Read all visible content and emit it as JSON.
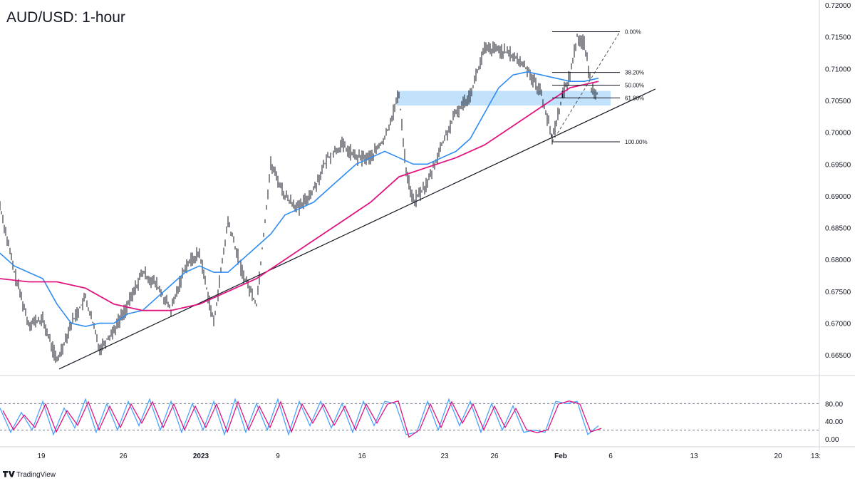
{
  "title": "AUD/USD: 1-hour",
  "brand": {
    "name": "TradingView",
    "logo_icon": "tradingview-logo-icon"
  },
  "colors": {
    "candle": "#131722",
    "ma_fast": "#2f8cf0",
    "ma_slow": "#e0157f",
    "zone": "#bbdefb",
    "stoch_k": "#4aa3ff",
    "stoch_d": "#e0157f"
  },
  "chart_data": {
    "type": "line",
    "instrument": "AUD/USD",
    "timeframe": "1-hour",
    "x_tick_labels": [
      "19",
      "26",
      "2023",
      "9",
      "16",
      "23",
      "26",
      "Feb",
      "6",
      "13",
      "20",
      "13:"
    ],
    "price_axis": {
      "ylim": [
        0.662,
        0.72
      ],
      "tick_labels": [
        "0.72000",
        "0.71500",
        "0.71000",
        "0.70500",
        "0.70000",
        "0.69500",
        "0.69000",
        "0.68500",
        "0.68000",
        "0.67500",
        "0.67000",
        "0.66500"
      ]
    },
    "series": [
      {
        "kind": "price",
        "x": [
          0,
          20,
          40,
          60,
          80,
          100,
          120,
          140,
          160,
          180,
          200,
          220,
          240,
          260,
          280,
          300,
          320,
          340,
          360,
          380,
          400,
          420,
          440,
          460,
          480,
          500,
          520,
          540,
          560,
          570,
          580,
          600,
          620,
          640,
          660,
          680,
          700,
          720,
          740,
          760,
          775,
          790,
          800,
          810,
          820,
          830,
          840
        ],
        "values": [
          0.6885,
          0.678,
          0.67,
          0.6705,
          0.664,
          0.67,
          0.674,
          0.666,
          0.669,
          0.673,
          0.678,
          0.676,
          0.672,
          0.679,
          0.681,
          0.67,
          0.686,
          0.678,
          0.673,
          0.695,
          0.69,
          0.688,
          0.691,
          0.696,
          0.698,
          0.696,
          0.696,
          0.699,
          0.706,
          0.694,
          0.689,
          0.692,
          0.698,
          0.703,
          0.706,
          0.713,
          0.713,
          0.712,
          0.71,
          0.706,
          0.699,
          0.706,
          0.709,
          0.715,
          0.714,
          0.707,
          0.706
        ]
      },
      {
        "kind": "ma_fast",
        "x": [
          0,
          20,
          40,
          60,
          80,
          100,
          120,
          140,
          160,
          180,
          200,
          220,
          240,
          260,
          280,
          300,
          320,
          340,
          360,
          380,
          400,
          420,
          440,
          460,
          480,
          500,
          520,
          540,
          560,
          580,
          600,
          620,
          640,
          660,
          680,
          700,
          720,
          740,
          760,
          780,
          800,
          820,
          840
        ],
        "values": [
          0.681,
          0.679,
          0.678,
          0.677,
          0.673,
          0.67,
          0.6695,
          0.67,
          0.67,
          0.6715,
          0.672,
          0.674,
          0.676,
          0.678,
          0.679,
          0.678,
          0.678,
          0.68,
          0.682,
          0.684,
          0.687,
          0.688,
          0.689,
          0.691,
          0.693,
          0.695,
          0.696,
          0.697,
          0.696,
          0.695,
          0.695,
          0.696,
          0.697,
          0.699,
          0.703,
          0.707,
          0.709,
          0.7095,
          0.709,
          0.7085,
          0.708,
          0.708,
          0.7085
        ]
      },
      {
        "kind": "ma_slow",
        "x": [
          0,
          40,
          80,
          120,
          160,
          200,
          240,
          280,
          320,
          360,
          400,
          440,
          480,
          520,
          560,
          600,
          640,
          680,
          720,
          760,
          800,
          840
        ],
        "values": [
          0.677,
          0.6765,
          0.6765,
          0.6755,
          0.673,
          0.672,
          0.672,
          0.673,
          0.675,
          0.677,
          0.68,
          0.683,
          0.686,
          0.689,
          0.693,
          0.6945,
          0.696,
          0.698,
          0.701,
          0.704,
          0.707,
          0.708
        ]
      }
    ],
    "trendline": {
      "from": {
        "x": 83,
        "y": 0.6628
      },
      "to": {
        "x": 920,
        "y": 0.7068
      }
    },
    "zone": {
      "from_x": 557,
      "to_x": 857,
      "y_top": 0.7065,
      "y_bottom": 0.7042
    },
    "fibonacci": {
      "from_x": 775,
      "to_x": 870,
      "levels": [
        {
          "label": "0.00%",
          "value": 0.7158
        },
        {
          "label": "38.20%",
          "value": 0.7094
        },
        {
          "label": "50.00%",
          "value": 0.7074
        },
        {
          "label": "61.80%",
          "value": 0.7054
        },
        {
          "label": "100.00%",
          "value": 0.6985
        }
      ]
    },
    "stochastic": {
      "ylim": [
        0,
        100
      ],
      "tick_labels": [
        "80.00",
        "40.00",
        "0.00"
      ],
      "overbought": 80,
      "oversold": 20,
      "x": [
        0,
        15,
        30,
        45,
        60,
        75,
        90,
        105,
        120,
        135,
        150,
        165,
        180,
        195,
        210,
        225,
        240,
        255,
        270,
        285,
        300,
        315,
        330,
        345,
        360,
        375,
        390,
        405,
        420,
        435,
        450,
        465,
        480,
        495,
        510,
        525,
        540,
        555,
        570,
        585,
        600,
        615,
        630,
        645,
        660,
        675,
        690,
        705,
        720,
        735,
        750,
        765,
        780,
        795,
        810,
        825,
        840
      ],
      "values": [
        70,
        15,
        60,
        20,
        85,
        10,
        70,
        25,
        90,
        15,
        80,
        20,
        85,
        30,
        90,
        20,
        85,
        15,
        80,
        20,
        85,
        10,
        90,
        15,
        80,
        20,
        90,
        10,
        85,
        30,
        85,
        25,
        80,
        15,
        85,
        30,
        85,
        80,
        10,
        15,
        85,
        20,
        90,
        30,
        85,
        15,
        80,
        20,
        75,
        15,
        20,
        15,
        85,
        80,
        85,
        10,
        30
      ]
    }
  }
}
